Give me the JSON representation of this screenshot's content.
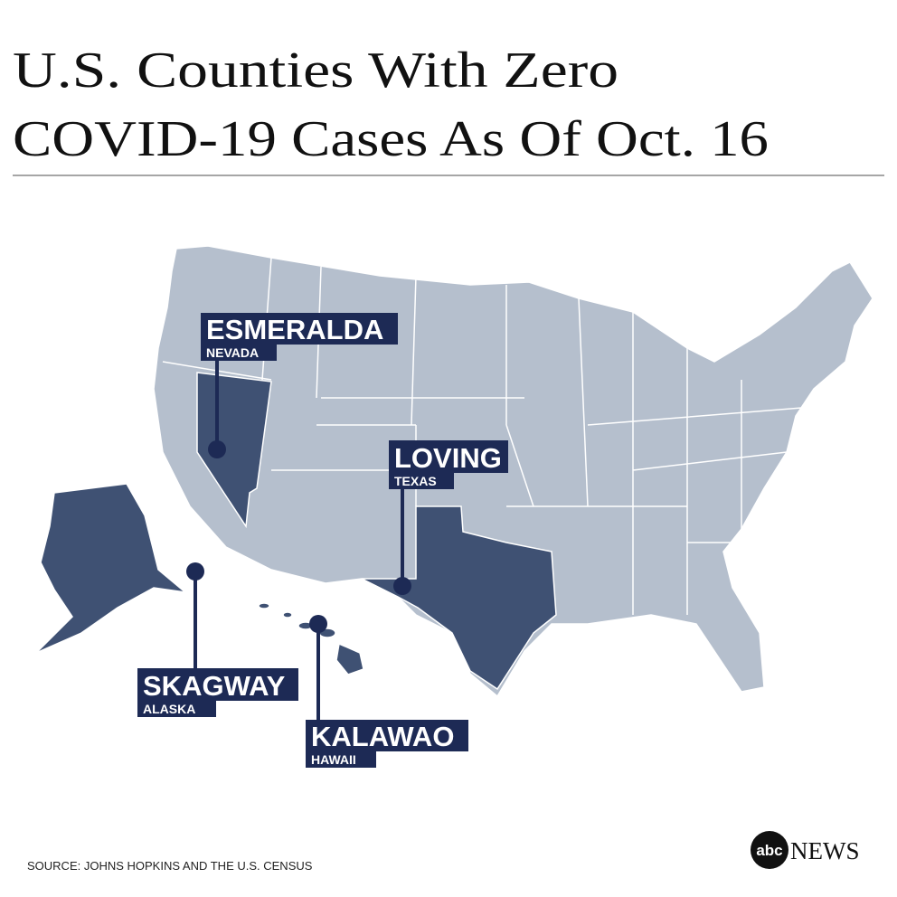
{
  "title": {
    "lines": [
      "U.S. Counties With Zero",
      "COVID-19 Cases As Of Oct. 16"
    ]
  },
  "labels": [
    {
      "county": "ESMERALDA",
      "state": "NEVADA"
    },
    {
      "county": "LOVING",
      "state": "TEXAS"
    },
    {
      "county": "SKAGWAY",
      "state": "ALASKA"
    },
    {
      "county": "KALAWAO",
      "state": "HAWAII"
    }
  ],
  "source": "SOURCE: JOHNS HOPKINS AND THE U.S. CENSUS",
  "logo": {
    "mark": "abc",
    "text": "NEWS"
  }
}
